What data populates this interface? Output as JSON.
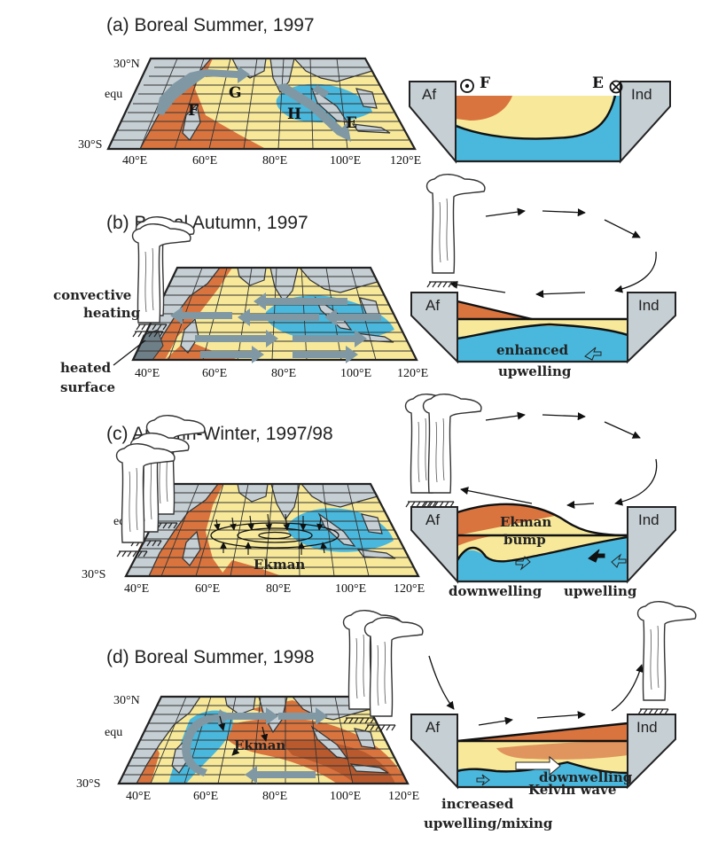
{
  "panels": [
    {
      "title": "(a) Boreal Summer, 1997",
      "lat_labels": [
        "30°N",
        "equ",
        "30°S"
      ],
      "lon_labels": [
        "40°E",
        "60°E",
        "80°E",
        "100°E",
        "120°E"
      ],
      "region_labels": [
        "F",
        "G",
        "H",
        "E"
      ],
      "box": {
        "left": "Af",
        "right": "Ind",
        "marker_left": "F",
        "marker_right": "E"
      }
    },
    {
      "title": "(b) Boreal Autumn, 1997",
      "lon_labels": [
        "40°E",
        "60°E",
        "80°E",
        "100°E",
        "120°E"
      ],
      "annotations": [
        "convective",
        "heating",
        "heated",
        "surface"
      ],
      "box": {
        "left": "Af",
        "right": "Ind",
        "text": [
          "enhanced",
          "upwelling"
        ]
      }
    },
    {
      "title": "(c) Autumn-Winter, 1997/98",
      "lat_labels": [
        "equ",
        "30°S"
      ],
      "lon_labels": [
        "40°E",
        "60°E",
        "80°E",
        "100°E",
        "120°E"
      ],
      "annotations": [
        "Ekman"
      ],
      "box": {
        "left": "Af",
        "right": "Ind",
        "text": [
          "Ekman",
          "bump",
          "downwelling",
          "upwelling"
        ]
      }
    },
    {
      "title": "(d) Boreal Summer, 1998",
      "lat_labels": [
        "30°N",
        "equ",
        "30°S"
      ],
      "lon_labels": [
        "40°E",
        "60°E",
        "80°E",
        "100°E",
        "120°E"
      ],
      "annotations": [
        "Ekman"
      ],
      "box": {
        "left": "Af",
        "right": "Ind",
        "text": [
          "downwelling",
          "Kelvin wave",
          "increased",
          "upwelling/mixing"
        ]
      }
    }
  ],
  "colors": {
    "warm_orange": "#d9743f",
    "yellow": "#f7e999",
    "cool_blue": "#4ab8dd",
    "land": "#c6cfd4",
    "arrow_grey": "#7f98a4"
  }
}
